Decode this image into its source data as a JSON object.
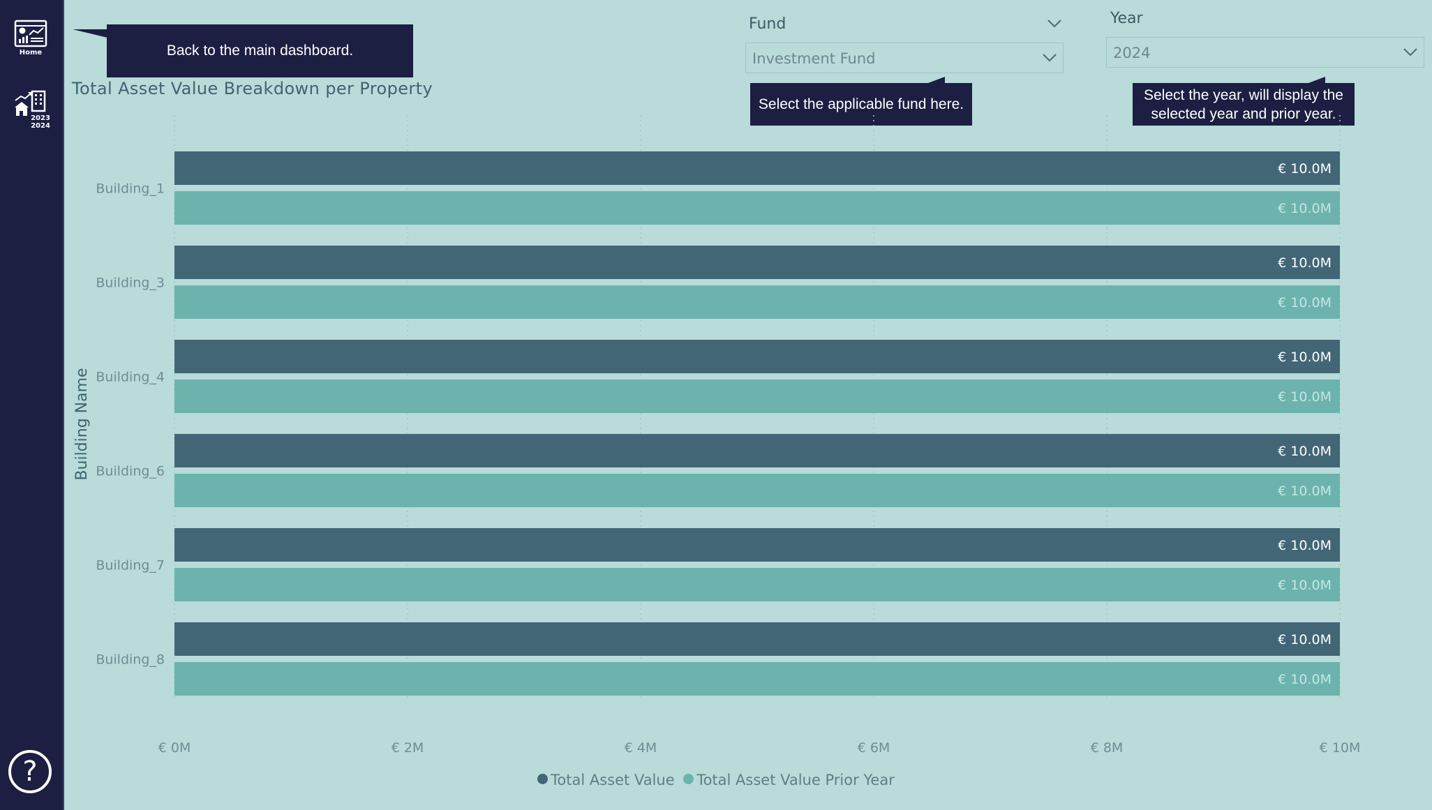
{
  "sidebar": {
    "home_label": "Home",
    "compare_label_top": "2023",
    "compare_label_bottom": "2024",
    "help_symbol": "?"
  },
  "tooltips": {
    "back": "Back to the main dashboard.",
    "fund": "Select the applicable fund here.",
    "year_line1": "Select the year, will display the",
    "year_line2": "selected year and prior year."
  },
  "slicers": {
    "fund": {
      "title": "Fund",
      "value": "Investment Fund"
    },
    "year": {
      "title": "Year",
      "value": "2024"
    }
  },
  "colors": {
    "background": "#b9dbda",
    "sidebar": "#1c1e42",
    "series_current": "#426675",
    "series_prior": "#6cb3ad",
    "label_current": "#ffffff",
    "label_prior": "#c6e6e2",
    "axis_text": "#6f8d93",
    "gridline": "#a3c9c7"
  },
  "chart_data": {
    "type": "bar",
    "orientation": "horizontal",
    "title": "Total Asset Value Breakdown per Property",
    "ylabel": "Building Name",
    "xlabel": "",
    "categories": [
      "Building_1",
      "Building_3",
      "Building_4",
      "Building_6",
      "Building_7",
      "Building_8"
    ],
    "series": [
      {
        "name": "Total Asset Value",
        "values": [
          10.0,
          10.0,
          10.0,
          10.0,
          10.0,
          10.0
        ],
        "labels": [
          "€ 10.0M",
          "€ 10.0M",
          "€ 10.0M",
          "€ 10.0M",
          "€ 10.0M",
          "€ 10.0M"
        ]
      },
      {
        "name": "Total Asset Value Prior Year",
        "values": [
          10.0,
          10.0,
          10.0,
          10.0,
          10.0,
          10.0
        ],
        "labels": [
          "€ 10.0M",
          "€ 10.0M",
          "€ 10.0M",
          "€ 10.0M",
          "€ 10.0M",
          "€ 10.0M"
        ]
      }
    ],
    "unit": "€M",
    "xlim": [
      0,
      10
    ],
    "xticks": [
      0,
      2,
      4,
      6,
      8,
      10
    ],
    "xtick_labels": [
      "€ 0M",
      "€ 2M",
      "€ 4M",
      "€ 6M",
      "€ 8M",
      "€ 10M"
    ],
    "grid": "vertical dotted",
    "legend": "bottom-center"
  }
}
